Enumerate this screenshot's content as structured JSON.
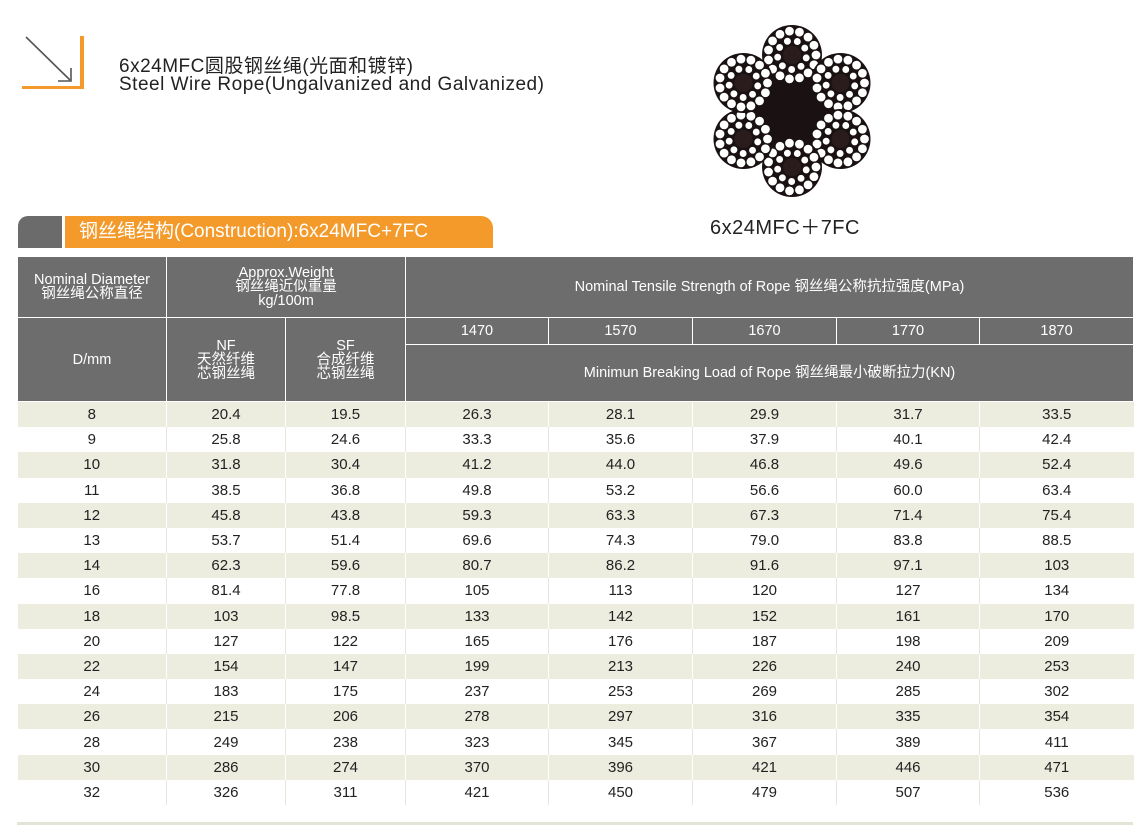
{
  "header": {
    "title_cn": "6x24MFC圆股钢丝绳(光面和镀锌)",
    "title_en": "Steel Wire Rope(Ungalvanized and Galvanized)",
    "logo_icon": "arrow-corner-icon",
    "accent_color": "#f39a2b"
  },
  "figure": {
    "icon": "rope-cross-section-icon",
    "caption": "6x24MFC＋7FC"
  },
  "section": {
    "label": "钢丝绳结构(Construction):6x24MFC+7FC",
    "label_bg": "#f39a2b",
    "tab_bg": "#6b6b6b"
  },
  "table": {
    "header_bg": "#6d6d6d",
    "row_alt_bg": "#ececdf",
    "head": {
      "nominal_diameter_en": "Nominal Diameter",
      "nominal_diameter_cn": "钢丝绳公称直径",
      "approx_weight_en": "Approx.Weight",
      "approx_weight_cn": "钢丝绳近似重量",
      "approx_weight_unit": "kg/100m",
      "tensile_strength": "Nominal Tensile Strength of Rope  钢丝绳公称抗拉强度(MPa)",
      "dmm": "D/mm",
      "nf": "NF",
      "nf_cn1": "天然纤维",
      "nf_cn2": "芯钢丝绳",
      "sf": "SF",
      "sf_cn1": "合成纤维",
      "sf_cn2": "芯钢丝绳",
      "grades": [
        "1470",
        "1570",
        "1670",
        "1770",
        "1870"
      ],
      "breaking_load": "Minimun Breaking Load of Rope  钢丝绳最小破断拉力(KN)"
    },
    "rows": [
      [
        "8",
        "20.4",
        "19.5",
        "26.3",
        "28.1",
        "29.9",
        "31.7",
        "33.5"
      ],
      [
        "9",
        "25.8",
        "24.6",
        "33.3",
        "35.6",
        "37.9",
        "40.1",
        "42.4"
      ],
      [
        "10",
        "31.8",
        "30.4",
        "41.2",
        "44.0",
        "46.8",
        "49.6",
        "52.4"
      ],
      [
        "11",
        "38.5",
        "36.8",
        "49.8",
        "53.2",
        "56.6",
        "60.0",
        "63.4"
      ],
      [
        "12",
        "45.8",
        "43.8",
        "59.3",
        "63.3",
        "67.3",
        "71.4",
        "75.4"
      ],
      [
        "13",
        "53.7",
        "51.4",
        "69.6",
        "74.3",
        "79.0",
        "83.8",
        "88.5"
      ],
      [
        "14",
        "62.3",
        "59.6",
        "80.7",
        "86.2",
        "91.6",
        "97.1",
        "103"
      ],
      [
        "16",
        "81.4",
        "77.8",
        "105",
        "113",
        "120",
        "127",
        "134"
      ],
      [
        "18",
        "103",
        "98.5",
        "133",
        "142",
        "152",
        "161",
        "170"
      ],
      [
        "20",
        "127",
        "122",
        "165",
        "176",
        "187",
        "198",
        "209"
      ],
      [
        "22",
        "154",
        "147",
        "199",
        "213",
        "226",
        "240",
        "253"
      ],
      [
        "24",
        "183",
        "175",
        "237",
        "253",
        "269",
        "285",
        "302"
      ],
      [
        "26",
        "215",
        "206",
        "278",
        "297",
        "316",
        "335",
        "354"
      ],
      [
        "28",
        "249",
        "238",
        "323",
        "345",
        "367",
        "389",
        "411"
      ],
      [
        "30",
        "286",
        "274",
        "370",
        "396",
        "421",
        "446",
        "471"
      ],
      [
        "32",
        "326",
        "311",
        "421",
        "450",
        "479",
        "507",
        "536"
      ]
    ]
  }
}
